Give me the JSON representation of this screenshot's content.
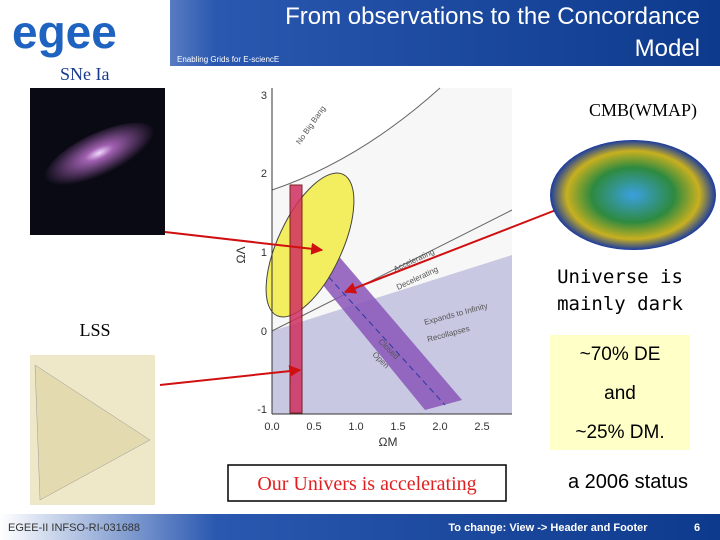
{
  "header": {
    "logo": "egee",
    "title": "From observations to the Concordance Model",
    "tagline": "Enabling Grids for E-sciencE"
  },
  "labels": {
    "sne": "SNe Ia",
    "lss": "LSS",
    "cmb": "CMB(WMAP)"
  },
  "plot": {
    "y_axis_label": "ΩΛ",
    "x_axis_label": "ΩM",
    "yticks": [
      "3",
      "2",
      "1",
      "0",
      "-1"
    ],
    "xticks": [
      "0.0",
      "0.5",
      "1.0",
      "1.5",
      "2.0",
      "2.5"
    ],
    "regions": [
      "No Big Bang",
      "Accelerating",
      "Decelerating",
      "Expands to Infinity",
      "Recollapses",
      "Closed",
      "Open"
    ]
  },
  "callouts": {
    "dark": "Universe is mainly dark",
    "composition": [
      "~70% DE",
      "and",
      "~25% DM."
    ],
    "accelerating": "Our Univers is accelerating",
    "status": "a 2006 status"
  },
  "footer": {
    "left": "EGEE-II INFSO-RI-031688",
    "center": "To change: View -> Header and Footer",
    "page": "6"
  }
}
